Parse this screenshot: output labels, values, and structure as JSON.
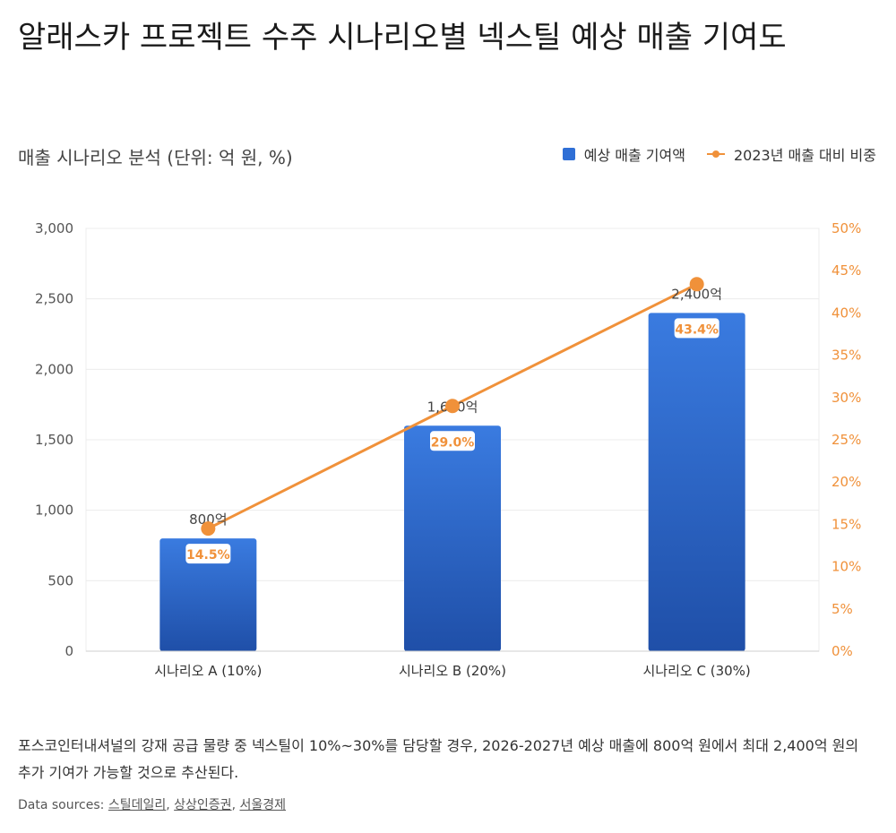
{
  "title": "알래스카 프로젝트 수주 시나리오별 넥스틸 예상 매출 기여도",
  "subtitle": "매출 시나리오 분석 (단위: 억 원, %)",
  "legend": {
    "bar_label": "예상 매출 기여액",
    "line_label": "2023년 매출 대비 비중"
  },
  "description": "포스코인터내셔널의 강재 공급 물량 중 넥스틸이 10%~30%를 담당할 경우, 2026-2027년 예상 매출에 800억 원에서 최대 2,400억 원의 추가 기여가 가능할 것으로 추산된다.",
  "sources": {
    "prefix": "Data sources: ",
    "items": [
      "스틸데일리",
      "상상인증권",
      "서울경제"
    ]
  },
  "colors": {
    "bar_top": "#3a7be0",
    "bar_bottom": "#1f4fa8",
    "line": "#f0913a",
    "grid": "#ececec",
    "right_axis": "#f0913a"
  },
  "chart_data": {
    "type": "bar",
    "categories": [
      "시나리오 A (10%)",
      "시나리오 B (20%)",
      "시나리오 C (30%)"
    ],
    "series": [
      {
        "name": "예상 매출 기여액",
        "type": "bar",
        "axis": "left",
        "values": [
          800,
          1600,
          2400
        ],
        "labels": [
          "800억",
          "1,600억",
          "2,400억"
        ]
      },
      {
        "name": "2023년 매출 대비 비중",
        "type": "line",
        "axis": "right",
        "values": [
          14.5,
          29.0,
          43.4
        ],
        "labels": [
          "14.5%",
          "29.0%",
          "43.4%"
        ]
      }
    ],
    "y_left": {
      "min": 0,
      "max": 3000,
      "ticks": [
        "0",
        "500",
        "1,000",
        "1,500",
        "2,000",
        "2,500",
        "3,000"
      ]
    },
    "y_right": {
      "min": 0,
      "max": 50,
      "ticks": [
        "0%",
        "5%",
        "10%",
        "15%",
        "20%",
        "25%",
        "30%",
        "35%",
        "40%",
        "45%",
        "50%"
      ]
    },
    "grid": true,
    "legend_position": "top-right"
  }
}
